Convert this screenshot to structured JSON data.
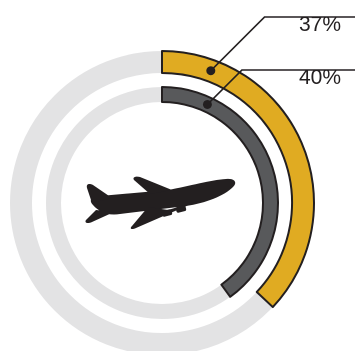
{
  "chart_data": {
    "type": "radial-bar",
    "series": [
      {
        "label": "37%",
        "value": 37,
        "color": "#e0ab22"
      },
      {
        "label": "40%",
        "value": 40,
        "color": "#58595b"
      }
    ],
    "track_color": "#e3e3e4",
    "stroke_color": "#231f20",
    "center_icon": "airplane-icon"
  }
}
